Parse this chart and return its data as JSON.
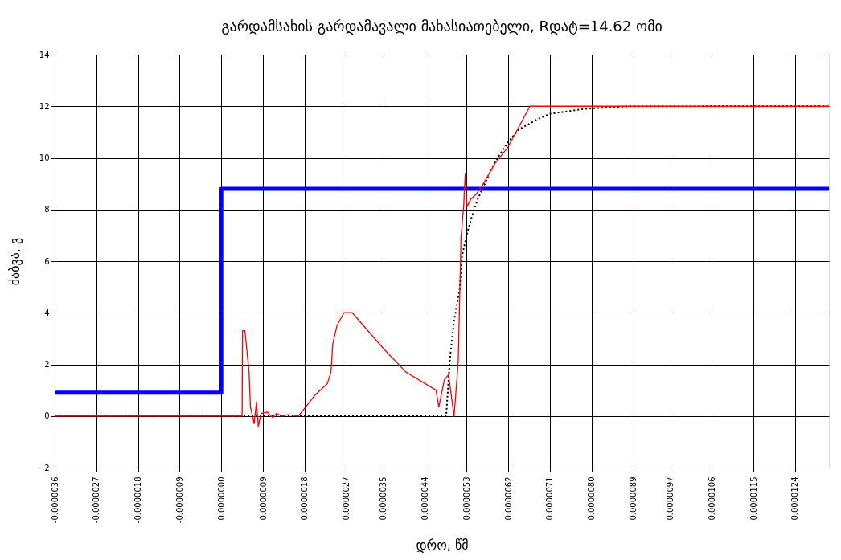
{
  "chart_data": {
    "type": "line",
    "title": "გარდამსახის გარდამავალი  მახასიათებელი, Rდატ=14.62 ომი",
    "xlabel": "დრო, წმ",
    "ylabel": "ძაბვა, ვ",
    "xlim": [
      -3.6e-06,
      1.313e-05
    ],
    "ylim": [
      -2,
      14
    ],
    "yticks": [
      -2,
      0,
      2,
      4,
      6,
      8,
      10,
      12,
      14
    ],
    "xticks": [
      {
        "value": -3.6e-06,
        "label": "-0.0000036"
      },
      {
        "value": -2.7e-06,
        "label": "-0.0000027"
      },
      {
        "value": -1.8e-06,
        "label": "-0.0000018"
      },
      {
        "value": -9e-07,
        "label": "-0.0000009"
      },
      {
        "value": 0,
        "label": "0.0000000"
      },
      {
        "value": 9e-07,
        "label": "0.0000009"
      },
      {
        "value": 1.8e-06,
        "label": "0.0000018"
      },
      {
        "value": 2.7e-06,
        "label": "0.0000027"
      },
      {
        "value": 3.5e-06,
        "label": "0.0000035"
      },
      {
        "value": 4.4e-06,
        "label": "0.0000044"
      },
      {
        "value": 5.3e-06,
        "label": "0.0000053"
      },
      {
        "value": 6.2e-06,
        "label": "0.0000062"
      },
      {
        "value": 7.1e-06,
        "label": "0.0000071"
      },
      {
        "value": 8e-06,
        "label": "0.0000080"
      },
      {
        "value": 8.9e-06,
        "label": "0.0000089"
      },
      {
        "value": 9.7e-06,
        "label": "0.0000097"
      },
      {
        "value": 1.06e-05,
        "label": "0.0000106"
      },
      {
        "value": 1.15e-05,
        "label": "0.0000115"
      },
      {
        "value": 1.24e-05,
        "label": "0.0000124"
      }
    ],
    "grid": true,
    "series": [
      {
        "color": "#000000",
        "line_style": "dotted",
        "x": [
          -3.6e-06,
          4.86e-06,
          4.94e-06,
          5.03e-06,
          5.15e-06,
          5.2e-06,
          5.33e-06,
          5.41e-06,
          5.54e-06,
          5.9e-06,
          6.19e-06,
          6.43e-06,
          6.84e-06,
          7.08e-06,
          7.86e-06,
          8.81e-06,
          1.313e-05
        ],
        "values": [
          0,
          0,
          2.2,
          3.7,
          4.9,
          6.2,
          7.2,
          7.7,
          8.4,
          9.8,
          10.6,
          11.1,
          11.5,
          11.7,
          11.9,
          12.0,
          12.0
        ]
      },
      {
        "color": "#0000ff",
        "line_style": "solid",
        "x": [
          -3.6e-06,
          0,
          0,
          1.313e-05
        ],
        "values": [
          0.9,
          0.9,
          8.8,
          8.8
        ]
      },
      {
        "color": "#ff0000",
        "line_style": "solid",
        "x": [
          -3.6e-06,
          4.5e-07,
          4.6e-07,
          5.1e-07,
          6e-07,
          6.3e-07,
          7.1e-07,
          7.6e-07,
          8e-07,
          8.6e-07,
          1e-06,
          1.1e-06,
          1.2e-06,
          1.3e-06,
          1.43e-06,
          1.67e-06,
          2.02e-06,
          2.29e-06,
          2.37e-06,
          2.41e-06,
          2.5e-06,
          2.65e-06,
          2.83e-06,
          3.51e-06,
          3.99e-06,
          4.64e-06,
          4.7e-06,
          4.82e-06,
          4.91e-06,
          5.03e-06,
          5.12e-06,
          5.18e-06,
          5.24e-06,
          5.27e-06,
          5.31e-06,
          5.39e-06,
          5.51e-06,
          5.63e-06,
          5.92e-06,
          6.19e-06,
          6.67e-06,
          1.313e-05
        ],
        "values": [
          0,
          0,
          3.3,
          3.3,
          1.7,
          0.35,
          -0.3,
          0.55,
          -0.4,
          0.1,
          0.15,
          -0.05,
          0.1,
          0,
          0.05,
          0,
          0.8,
          1.25,
          1.7,
          2.8,
          3.5,
          4.0,
          4.0,
          2.6,
          1.7,
          1.0,
          0.35,
          1.4,
          1.6,
          0,
          2.1,
          6.9,
          8.2,
          9.4,
          8.1,
          8.4,
          8.6,
          8.9,
          9.8,
          10.4,
          12.0,
          12.0
        ]
      }
    ]
  }
}
